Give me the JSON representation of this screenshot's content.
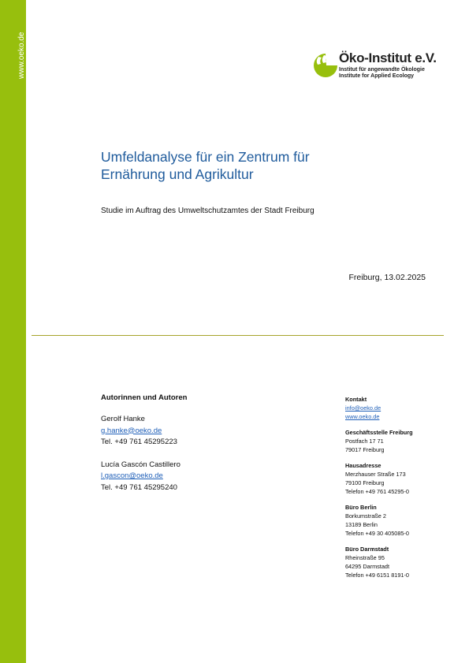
{
  "sidebar": {
    "url": "www.oeko.de"
  },
  "logo": {
    "name": "Öko-Institut e.V.",
    "tagline_de": "Institut für angewandte Ökologie",
    "tagline_en": "Institute for Applied Ecology"
  },
  "title": {
    "lines": [
      "Umfeldanalyse für ein Zentrum für",
      "Ernährung und Agrikultur"
    ]
  },
  "subtitle": "Studie im Auftrag des Umweltschutzamtes der Stadt Freiburg",
  "date": "Freiburg, 13.02.2025",
  "authors": {
    "heading": "Autorinnen und Autoren",
    "people": [
      {
        "name": "Gerolf Hanke",
        "email": "g.hanke@oeko.de",
        "phone": "Tel. +49 761 45295223"
      },
      {
        "name": "Lucía Gascón Castillero",
        "email": "l.gascon@oeko.de",
        "phone": "Tel. +49 761 45295240"
      }
    ]
  },
  "contact": {
    "sections": [
      {
        "heading": "Kontakt",
        "links": [
          "info@oeko.de",
          "www.oeko.de"
        ],
        "lines": []
      },
      {
        "heading": "Geschäftsstelle Freiburg",
        "links": [],
        "lines": [
          "Postfach 17 71",
          "79017 Freiburg"
        ]
      },
      {
        "heading": "Hausadresse",
        "links": [],
        "lines": [
          "Merzhauser Straße 173",
          "79100 Freiburg",
          "Telefon +49 761 45295-0"
        ]
      },
      {
        "heading": "Büro Berlin",
        "links": [],
        "lines": [
          "Borkumstraße 2",
          "13189 Berlin",
          "Telefon +49 30 405085-0"
        ]
      },
      {
        "heading": "Büro Darmstadt",
        "links": [],
        "lines": [
          "Rheinstraße 95",
          "64295 Darmstadt",
          "Telefon +49 6151 8191-0"
        ]
      }
    ]
  }
}
